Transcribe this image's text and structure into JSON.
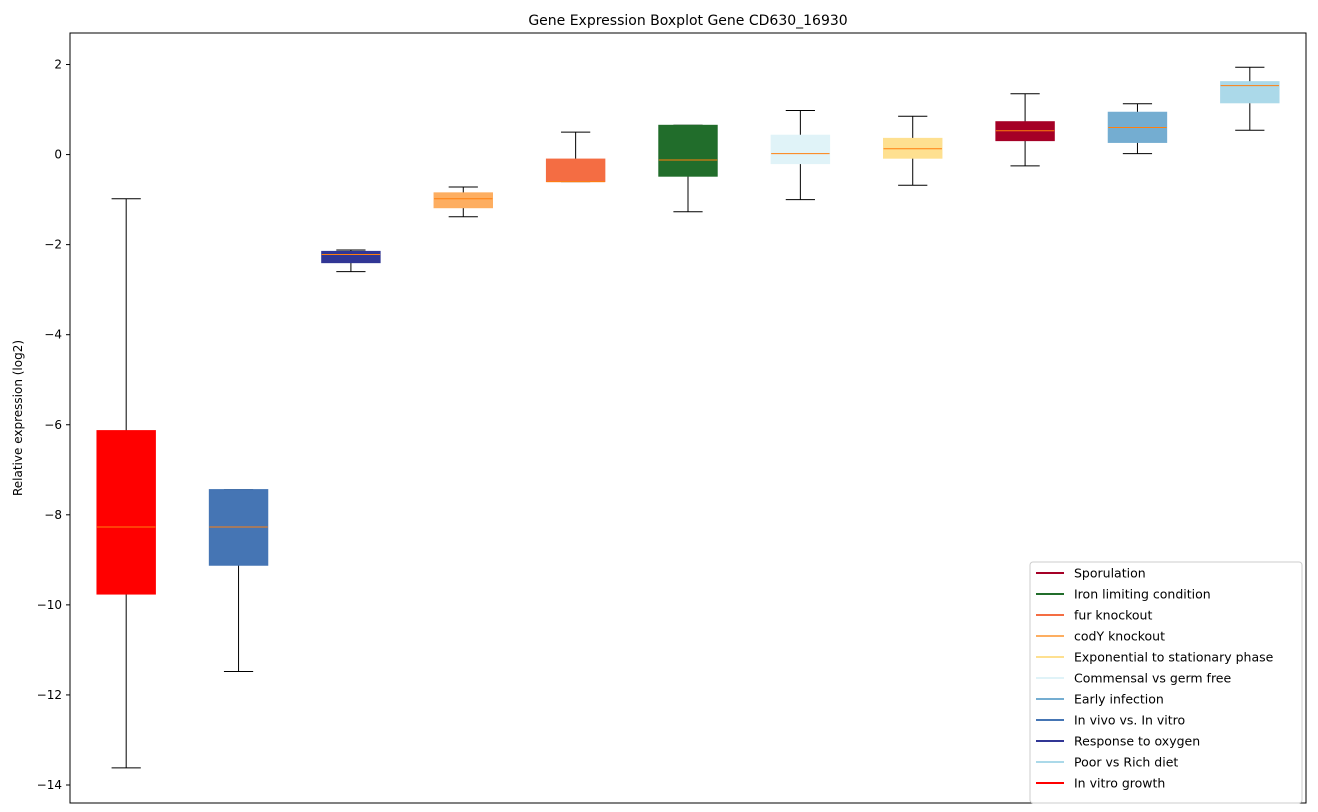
{
  "chart_data": {
    "type": "boxplot",
    "title": "Gene Expression Boxplot Gene CD630_16930",
    "xlabel": "",
    "ylabel": "Relative expression (log2)",
    "ylim": [
      -14.4,
      2.7
    ],
    "yticks": [
      2,
      0,
      -2,
      -4,
      -6,
      -8,
      -10,
      -12,
      -14
    ],
    "legend_position": "lower-right",
    "grid": false,
    "median_color": "#ff7f0e",
    "boxes": [
      {
        "legend_ref": "In vitro growth",
        "color": "#ff0000",
        "whisker_low": -13.62,
        "q1": -9.76,
        "median": -8.27,
        "q3": -6.13,
        "whisker_high": -0.98
      },
      {
        "legend_ref": "In vivo vs. In vitro",
        "color": "#4575b4",
        "whisker_low": -11.48,
        "q1": -9.12,
        "median": -8.27,
        "q3": -7.44,
        "whisker_high": -7.44
      },
      {
        "legend_ref": "Response to oxygen",
        "color": "#313695",
        "whisker_low": -2.6,
        "q1": -2.4,
        "median": -2.22,
        "q3": -2.15,
        "whisker_high": -2.12
      },
      {
        "legend_ref": "codY knockout",
        "color": "#fdae61",
        "whisker_low": -1.38,
        "q1": -1.18,
        "median": -0.98,
        "q3": -0.85,
        "whisker_high": -0.72
      },
      {
        "legend_ref": "fur knockout",
        "color": "#f46d43",
        "whisker_low": -0.6,
        "q1": -0.6,
        "median": -0.6,
        "q3": -0.1,
        "whisker_high": 0.5
      },
      {
        "legend_ref": "Iron limiting condition",
        "color": "#216d2b",
        "whisker_low": -1.27,
        "q1": -0.48,
        "median": -0.12,
        "q3": 0.65,
        "whisker_high": 0.65
      },
      {
        "legend_ref": "Commensal vs germ free",
        "color": "#e0f3f8",
        "whisker_low": -1.0,
        "q1": -0.2,
        "median": 0.02,
        "q3": 0.43,
        "whisker_high": 0.98
      },
      {
        "legend_ref": "Exponential to stationary phase",
        "color": "#fee090",
        "whisker_low": -0.68,
        "q1": -0.08,
        "median": 0.13,
        "q3": 0.36,
        "whisker_high": 0.85
      },
      {
        "legend_ref": "Sporulation",
        "color": "#a50026",
        "whisker_low": -0.25,
        "q1": 0.31,
        "median": 0.53,
        "q3": 0.73,
        "whisker_high": 1.35
      },
      {
        "legend_ref": "Early infection",
        "color": "#74add1",
        "whisker_low": 0.02,
        "q1": 0.27,
        "median": 0.6,
        "q3": 0.94,
        "whisker_high": 1.13
      },
      {
        "legend_ref": "Poor vs Rich diet",
        "color": "#abd9e9",
        "whisker_low": 0.54,
        "q1": 1.15,
        "median": 1.53,
        "q3": 1.62,
        "whisker_high": 1.94
      }
    ],
    "legend": [
      {
        "label": "Sporulation",
        "color": "#a50026"
      },
      {
        "label": "Iron limiting condition",
        "color": "#216d2b"
      },
      {
        "label": "fur knockout",
        "color": "#f46d43"
      },
      {
        "label": "codY knockout",
        "color": "#fdae61"
      },
      {
        "label": "Exponential to stationary phase",
        "color": "#fee090"
      },
      {
        "label": "Commensal vs germ free",
        "color": "#e0f3f8"
      },
      {
        "label": "Early infection",
        "color": "#74add1"
      },
      {
        "label": "In vivo vs. In vitro",
        "color": "#4575b4"
      },
      {
        "label": "Response to oxygen",
        "color": "#313695"
      },
      {
        "label": "Poor vs Rich diet",
        "color": "#abd9e9"
      },
      {
        "label": "In vitro growth",
        "color": "#ff0000"
      }
    ]
  }
}
